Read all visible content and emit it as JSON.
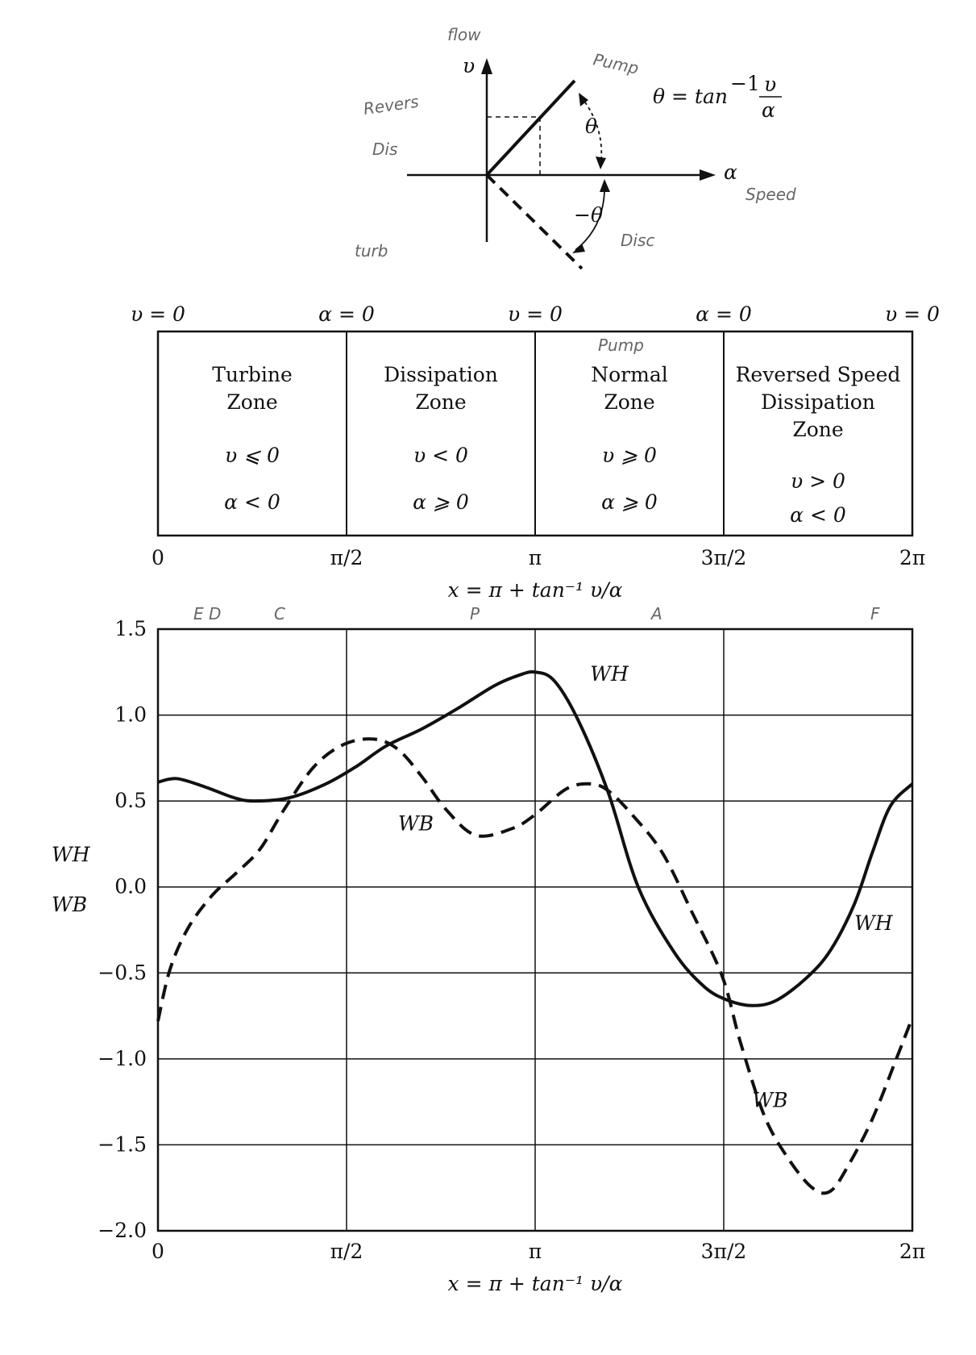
{
  "vector_diagram": {
    "flow_label": "flow",
    "v_axis": "υ",
    "alpha_axis": "α",
    "speed_label": "Speed",
    "theta": "θ",
    "neg_theta": "−θ",
    "formula_lhs": "θ = tan",
    "formula_exp": "−1",
    "formula_num": "υ",
    "formula_den": "α",
    "pump_label": "Pump",
    "reverse_dis_label1": "Revers",
    "reverse_dis_label2": "Dis",
    "turb_label": "turb",
    "disc_label": "Disc"
  },
  "zones": {
    "top_boundaries": [
      "υ = 0",
      "α = 0",
      "υ = 0",
      "α = 0",
      "υ = 0"
    ],
    "bottom_ticks": [
      "0",
      "π/2",
      "π",
      "3π/2",
      "2π"
    ],
    "axis_formula": "x = π + tan⁻¹ υ/α",
    "hand_letters": [
      "E D",
      "C",
      "P",
      "A",
      "F"
    ],
    "pump_note": "Pump",
    "cells": [
      {
        "lines": [
          "Turbine",
          "Zone"
        ],
        "cond1": "υ ⩽ 0",
        "cond2": "α < 0"
      },
      {
        "lines": [
          "Dissipation",
          "Zone"
        ],
        "cond1": "υ < 0",
        "cond2": "α ⩾ 0"
      },
      {
        "lines": [
          "Normal",
          "Zone"
        ],
        "cond1": "υ ⩾ 0",
        "cond2": "α ⩾ 0"
      },
      {
        "lines": [
          "Reversed Speed",
          "Dissipation",
          "Zone"
        ],
        "cond1": "υ > 0",
        "cond2": "α < 0"
      }
    ]
  },
  "chart_data": {
    "type": "line",
    "xlabel": "x = π + tan⁻¹ υ/α",
    "ylabel_lines": [
      "WH",
      "WB"
    ],
    "xlim": [
      0,
      6.2832
    ],
    "ylim": [
      -2.0,
      1.5
    ],
    "x_tick_values": [
      0,
      1.5708,
      3.1416,
      4.7124,
      6.2832
    ],
    "x_tick_labels": [
      "0",
      "π/2",
      "π",
      "3π/2",
      "2π"
    ],
    "y_tick_values": [
      1.5,
      1.0,
      0.5,
      0.0,
      -0.5,
      -1.0,
      -1.5,
      -2.0
    ],
    "y_tick_labels": [
      "1.5",
      "1.0",
      "0.5",
      "0.0",
      "−0.5",
      "−1.0",
      "−1.5",
      "−2.0"
    ],
    "grid": true,
    "series": [
      {
        "name": "WH",
        "style": "solid",
        "x": [
          0,
          0.16,
          0.4,
          0.63,
          0.8,
          1.1,
          1.4,
          1.65,
          1.9,
          2.2,
          2.5,
          2.8,
          3.0,
          3.14,
          3.3,
          3.5,
          3.75,
          4.0,
          4.3,
          4.55,
          4.75,
          4.95,
          5.15,
          5.4,
          5.6,
          5.8,
          5.95,
          6.1,
          6.2832
        ],
        "y": [
          0.61,
          0.63,
          0.58,
          0.52,
          0.5,
          0.52,
          0.6,
          0.7,
          0.82,
          0.92,
          1.04,
          1.17,
          1.23,
          1.25,
          1.2,
          0.97,
          0.55,
          0.0,
          -0.38,
          -0.58,
          -0.66,
          -0.69,
          -0.66,
          -0.53,
          -0.37,
          -0.1,
          0.2,
          0.47,
          0.6
        ]
      },
      {
        "name": "WB",
        "style": "dashed",
        "x": [
          0,
          0.1,
          0.25,
          0.45,
          0.65,
          0.85,
          1.05,
          1.3,
          1.55,
          1.8,
          2.0,
          2.2,
          2.4,
          2.65,
          2.95,
          3.14,
          3.4,
          3.6,
          3.75,
          3.95,
          4.2,
          4.45,
          4.7,
          4.85,
          5.05,
          5.25,
          5.45,
          5.6,
          5.75,
          5.95,
          6.15,
          6.2832
        ],
        "y": [
          -0.78,
          -0.48,
          -0.24,
          -0.05,
          0.08,
          0.22,
          0.45,
          0.7,
          0.83,
          0.86,
          0.8,
          0.64,
          0.45,
          0.3,
          0.34,
          0.42,
          0.57,
          0.6,
          0.56,
          0.42,
          0.2,
          -0.15,
          -0.52,
          -0.9,
          -1.33,
          -1.58,
          -1.75,
          -1.77,
          -1.62,
          -1.35,
          -1.0,
          -0.76
        ]
      }
    ],
    "annotations": [
      {
        "text": "WH",
        "x": 3.6,
        "y": 1.2
      },
      {
        "text": "WB",
        "x": 2.0,
        "y": 0.33
      },
      {
        "text": "WH",
        "x": 5.8,
        "y": -0.25
      },
      {
        "text": "WB",
        "x": 4.95,
        "y": -1.28
      }
    ]
  }
}
